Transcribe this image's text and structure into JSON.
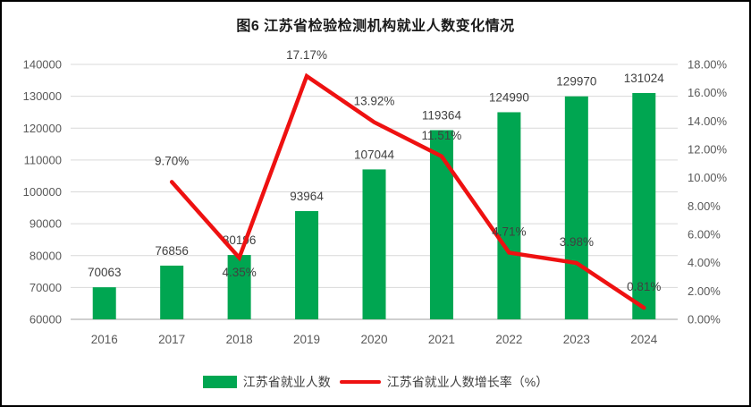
{
  "title": "图6  江苏省检验检测机构就业人数变化情况",
  "colors": {
    "bar": "#00A651",
    "line": "#EE1111",
    "grid": "#D9D9D9",
    "axis_line": "#BFBFBF",
    "axis_text": "#595959",
    "label_text": "#404040",
    "title_text": "#1A1A1A",
    "border": "#000000",
    "background": "#FFFFFF"
  },
  "chart_data": {
    "type": "combo",
    "title": "图6  江苏省检验检测机构就业人数变化情况",
    "categories": [
      "2016",
      "2017",
      "2018",
      "2019",
      "2020",
      "2021",
      "2022",
      "2023",
      "2024"
    ],
    "series": [
      {
        "name": "江苏省就业人数",
        "type": "bar",
        "axis": "left",
        "color": "#00A651",
        "values": [
          70063,
          76856,
          80196,
          93964,
          107044,
          119364,
          124990,
          129970,
          131024
        ],
        "labels": [
          "70063",
          "76856",
          "80196",
          "93964",
          "107044",
          "119364",
          "124990",
          "129970",
          "131024"
        ]
      },
      {
        "name": "江苏省就业人数增长率（%）",
        "type": "line",
        "axis": "right",
        "color": "#EE1111",
        "values": [
          null,
          9.7,
          4.35,
          17.17,
          13.92,
          11.51,
          4.71,
          3.98,
          0.81
        ],
        "labels": [
          "",
          "9.70%",
          "4.35%",
          "17.17%",
          "13.92%",
          "11.51%",
          "4.71%",
          "3.98%",
          "0.81%"
        ],
        "label_positions": [
          "",
          "above",
          "below",
          "above",
          "above",
          "above",
          "above",
          "above",
          "above"
        ]
      }
    ],
    "left_axis": {
      "min": 60000,
      "max": 140000,
      "step": 10000,
      "tick_labels": [
        "60000",
        "70000",
        "80000",
        "90000",
        "100000",
        "110000",
        "120000",
        "130000",
        "140000"
      ]
    },
    "right_axis": {
      "min": 0,
      "max": 18,
      "step": 2,
      "tick_labels": [
        "0.00%",
        "2.00%",
        "4.00%",
        "6.00%",
        "8.00%",
        "10.00%",
        "12.00%",
        "14.00%",
        "16.00%",
        "18.00%"
      ]
    },
    "grid": true,
    "legend_position": "bottom"
  },
  "legend": {
    "items": [
      {
        "label": "江苏省就业人数",
        "swatch": "bar"
      },
      {
        "label": "江苏省就业人数增长率（%）",
        "swatch": "line"
      }
    ]
  }
}
